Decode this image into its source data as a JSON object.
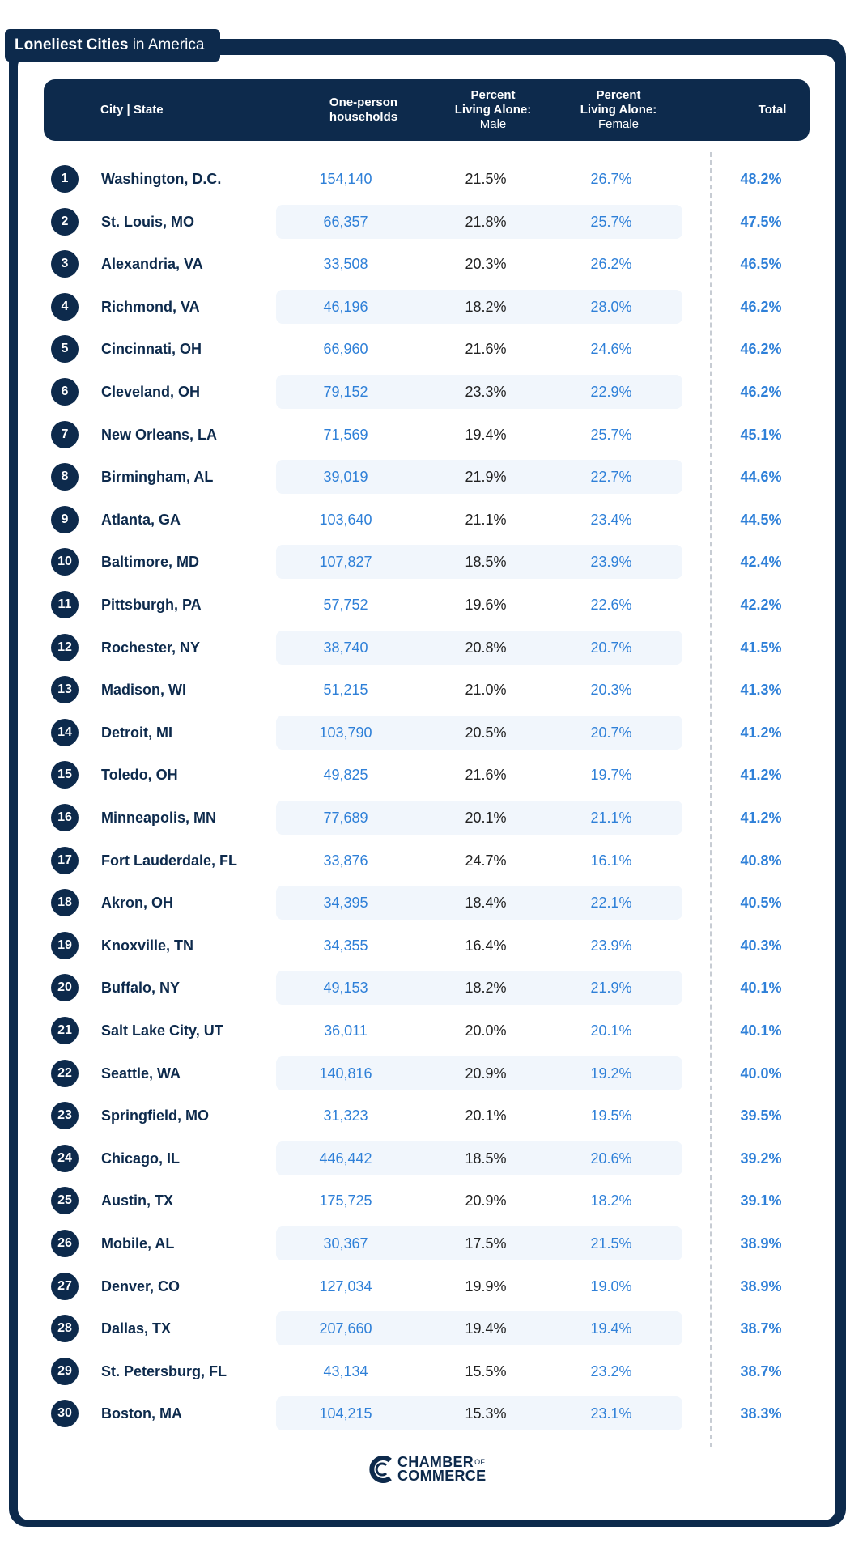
{
  "title": {
    "bold": "Loneliest Cities",
    "rest": " in America"
  },
  "header": {
    "city": "City | State",
    "households_1": "One-person",
    "households_2": "households",
    "male_1": "Percent",
    "male_2": "Living Alone:",
    "male_3": "Male",
    "female_1": "Percent",
    "female_2": "Living Alone:",
    "female_3": "Female",
    "total": "Total"
  },
  "colors": {
    "navy": "#0d2a4c",
    "accent_blue": "#2f80d8",
    "band": "#f1f6fc"
  },
  "chart_data": {
    "type": "table",
    "columns": [
      "City | State",
      "One-person households",
      "Percent Living Alone: Male",
      "Percent Living Alone: Female",
      "Total"
    ],
    "rows": [
      {
        "rank": "1",
        "city": "Washington, D.C.",
        "households": "154,140",
        "male": "21.5%",
        "female": "26.7%",
        "total": "48.2%"
      },
      {
        "rank": "2",
        "city": "St. Louis, MO",
        "households": "66,357",
        "male": "21.8%",
        "female": "25.7%",
        "total": "47.5%"
      },
      {
        "rank": "3",
        "city": "Alexandria, VA",
        "households": "33,508",
        "male": "20.3%",
        "female": "26.2%",
        "total": "46.5%"
      },
      {
        "rank": "4",
        "city": "Richmond, VA",
        "households": "46,196",
        "male": "18.2%",
        "female": "28.0%",
        "total": "46.2%"
      },
      {
        "rank": "5",
        "city": "Cincinnati, OH",
        "households": "66,960",
        "male": "21.6%",
        "female": "24.6%",
        "total": "46.2%"
      },
      {
        "rank": "6",
        "city": "Cleveland, OH",
        "households": "79,152",
        "male": "23.3%",
        "female": "22.9%",
        "total": "46.2%"
      },
      {
        "rank": "7",
        "city": "New Orleans, LA",
        "households": "71,569",
        "male": "19.4%",
        "female": "25.7%",
        "total": "45.1%"
      },
      {
        "rank": "8",
        "city": "Birmingham, AL",
        "households": "39,019",
        "male": "21.9%",
        "female": "22.7%",
        "total": "44.6%"
      },
      {
        "rank": "9",
        "city": "Atlanta, GA",
        "households": "103,640",
        "male": "21.1%",
        "female": "23.4%",
        "total": "44.5%"
      },
      {
        "rank": "10",
        "city": "Baltimore, MD",
        "households": "107,827",
        "male": "18.5%",
        "female": "23.9%",
        "total": "42.4%"
      },
      {
        "rank": "11",
        "city": "Pittsburgh, PA",
        "households": "57,752",
        "male": "19.6%",
        "female": "22.6%",
        "total": "42.2%"
      },
      {
        "rank": "12",
        "city": "Rochester, NY",
        "households": "38,740",
        "male": "20.8%",
        "female": "20.7%",
        "total": "41.5%"
      },
      {
        "rank": "13",
        "city": "Madison, WI",
        "households": "51,215",
        "male": "21.0%",
        "female": "20.3%",
        "total": "41.3%"
      },
      {
        "rank": "14",
        "city": "Detroit, MI",
        "households": "103,790",
        "male": "20.5%",
        "female": "20.7%",
        "total": "41.2%"
      },
      {
        "rank": "15",
        "city": "Toledo, OH",
        "households": "49,825",
        "male": "21.6%",
        "female": "19.7%",
        "total": "41.2%"
      },
      {
        "rank": "16",
        "city": "Minneapolis, MN",
        "households": "77,689",
        "male": "20.1%",
        "female": "21.1%",
        "total": "41.2%"
      },
      {
        "rank": "17",
        "city": "Fort Lauderdale, FL",
        "households": "33,876",
        "male": "24.7%",
        "female": "16.1%",
        "total": "40.8%"
      },
      {
        "rank": "18",
        "city": "Akron, OH",
        "households": "34,395",
        "male": "18.4%",
        "female": "22.1%",
        "total": "40.5%"
      },
      {
        "rank": "19",
        "city": "Knoxville, TN",
        "households": "34,355",
        "male": "16.4%",
        "female": "23.9%",
        "total": "40.3%"
      },
      {
        "rank": "20",
        "city": "Buffalo, NY",
        "households": "49,153",
        "male": "18.2%",
        "female": "21.9%",
        "total": "40.1%"
      },
      {
        "rank": "21",
        "city": "Salt Lake City, UT",
        "households": "36,011",
        "male": "20.0%",
        "female": "20.1%",
        "total": "40.1%"
      },
      {
        "rank": "22",
        "city": "Seattle, WA",
        "households": "140,816",
        "male": "20.9%",
        "female": "19.2%",
        "total": "40.0%"
      },
      {
        "rank": "23",
        "city": "Springfield, MO",
        "households": "31,323",
        "male": "20.1%",
        "female": "19.5%",
        "total": "39.5%"
      },
      {
        "rank": "24",
        "city": "Chicago, IL",
        "households": "446,442",
        "male": "18.5%",
        "female": "20.6%",
        "total": "39.2%"
      },
      {
        "rank": "25",
        "city": "Austin, TX",
        "households": "175,725",
        "male": "20.9%",
        "female": "18.2%",
        "total": "39.1%"
      },
      {
        "rank": "26",
        "city": "Mobile, AL",
        "households": "30,367",
        "male": "17.5%",
        "female": "21.5%",
        "total": "38.9%"
      },
      {
        "rank": "27",
        "city": "Denver, CO",
        "households": "127,034",
        "male": "19.9%",
        "female": "19.0%",
        "total": "38.9%"
      },
      {
        "rank": "28",
        "city": "Dallas, TX",
        "households": "207,660",
        "male": "19.4%",
        "female": "19.4%",
        "total": "38.7%"
      },
      {
        "rank": "29",
        "city": "St. Petersburg, FL",
        "households": "43,134",
        "male": "15.5%",
        "female": "23.2%",
        "total": "38.7%"
      },
      {
        "rank": "30",
        "city": "Boston, MA",
        "households": "104,215",
        "male": "15.3%",
        "female": "23.1%",
        "total": "38.3%"
      }
    ]
  },
  "logo": {
    "line1": "CHAMBER",
    "of": "OF",
    "line2": "COMMERCE"
  }
}
